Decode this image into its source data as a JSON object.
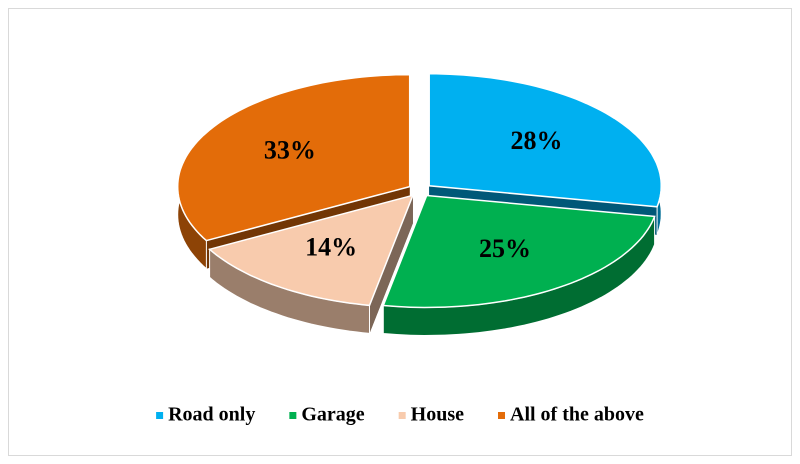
{
  "chart_data": {
    "type": "pie",
    "categories": [
      "Road only",
      "Garage",
      "House",
      "All of the above"
    ],
    "values": [
      28,
      25,
      14,
      33
    ],
    "value_labels": [
      "28%",
      "25%",
      "14%",
      "33%"
    ],
    "colors": [
      "#00b0f0",
      "#00b050",
      "#f8cbad",
      "#e36c09"
    ],
    "legend": "bottom"
  }
}
